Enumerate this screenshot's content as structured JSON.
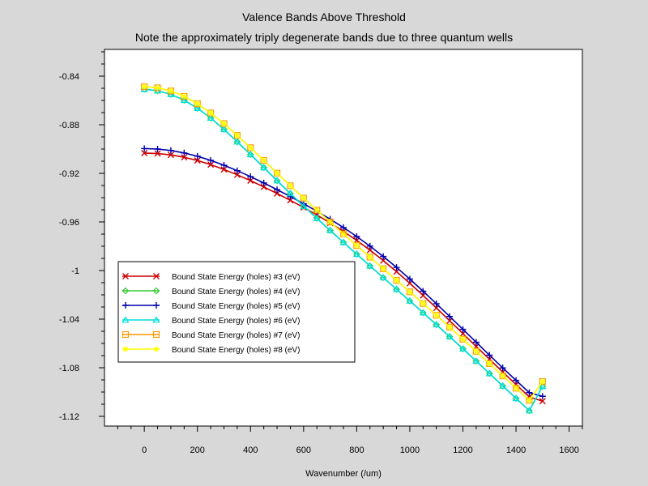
{
  "chart_data": {
    "type": "line",
    "title": "Valence Bands Above Threshold",
    "subtitle": "Note the approximately triply degenerate bands due to three quantum wells",
    "xlabel": "Wavenumber (/um)",
    "ylabel": "",
    "xlim": [
      -150,
      1650
    ],
    "ylim": [
      -1.128,
      -0.818
    ],
    "x_ticks": [
      0,
      200,
      400,
      600,
      800,
      1000,
      1200,
      1400,
      1600
    ],
    "x_tick_labels": [
      "0",
      "200",
      "400",
      "600",
      "800",
      "1000",
      "1200",
      "1400",
      "1600"
    ],
    "y_ticks": [
      -0.84,
      -0.88,
      -0.92,
      -0.96,
      -1.0,
      -1.04,
      -1.08,
      -1.12
    ],
    "y_tick_labels": [
      "-0.84",
      "-0.88",
      "-0.92",
      "-0.96",
      "-1",
      "-1.04",
      "-1.08",
      "-1.12"
    ],
    "grid": false,
    "legend_position": "lower-left",
    "x": [
      0,
      50,
      100,
      150,
      200,
      250,
      300,
      350,
      400,
      450,
      500,
      550,
      600,
      650,
      700,
      750,
      800,
      850,
      900,
      950,
      1000,
      1050,
      1100,
      1150,
      1200,
      1250,
      1300,
      1350,
      1400,
      1450,
      1500
    ],
    "series": [
      {
        "name": "Bound State Energy (holes) #3 (eV)",
        "color": "#cc0000",
        "marker": "x",
        "values": [
          -0.9033,
          -0.9037,
          -0.9048,
          -0.9068,
          -0.9094,
          -0.9128,
          -0.9168,
          -0.9212,
          -0.926,
          -0.9312,
          -0.9366,
          -0.9422,
          -0.9481,
          -0.9543,
          -0.9608,
          -0.9678,
          -0.9752,
          -0.9832,
          -0.9918,
          -1.0009,
          -1.0105,
          -1.0205,
          -1.0308,
          -1.0413,
          -1.0519,
          -1.0625,
          -1.073,
          -1.0835,
          -1.0938,
          -1.104,
          -1.1075
        ]
      },
      {
        "name": "Bound State Energy (holes) #4 (eV)",
        "color": "#33cc33",
        "marker": "diamond",
        "values": [
          -0.8508,
          -0.852,
          -0.855,
          -0.8598,
          -0.8664,
          -0.8745,
          -0.8838,
          -0.894,
          -0.9045,
          -0.9152,
          -0.926,
          -0.9366,
          -0.947,
          -0.957,
          -0.967,
          -0.9768,
          -0.9865,
          -0.9962,
          -1.0058,
          -1.0154,
          -1.025,
          -1.0347,
          -1.0445,
          -1.0544,
          -1.0644,
          -1.0745,
          -1.0847,
          -1.095,
          -1.1052,
          -1.1153,
          -1.0953
        ]
      },
      {
        "name": "Bound State Energy (holes) #5 (eV)",
        "color": "#0000aa",
        "marker": "plus",
        "values": [
          -0.8996,
          -0.9,
          -0.9012,
          -0.9032,
          -0.9059,
          -0.9093,
          -0.9133,
          -0.9178,
          -0.9227,
          -0.9279,
          -0.9334,
          -0.9391,
          -0.945,
          -0.9512,
          -0.9577,
          -0.9646,
          -0.972,
          -0.9799,
          -0.9884,
          -0.9974,
          -1.007,
          -1.017,
          -1.0273,
          -1.0378,
          -1.0484,
          -1.059,
          -1.0696,
          -1.0801,
          -1.0904,
          -1.1005,
          -1.1035
        ]
      },
      {
        "name": "Bound State Energy (holes) #6 (eV)",
        "color": "#00dddd",
        "marker": "triangle",
        "values": [
          -0.8508,
          -0.852,
          -0.855,
          -0.8598,
          -0.8664,
          -0.8745,
          -0.8838,
          -0.894,
          -0.9045,
          -0.9152,
          -0.926,
          -0.9366,
          -0.947,
          -0.957,
          -0.967,
          -0.9768,
          -0.9865,
          -0.9962,
          -1.0058,
          -1.0154,
          -1.025,
          -1.0347,
          -1.0445,
          -1.0544,
          -1.0644,
          -1.0745,
          -1.0847,
          -1.095,
          -1.1052,
          -1.1153,
          -1.0953
        ]
      },
      {
        "name": "Bound State Energy (holes) #7 (eV)",
        "color": "#ff9900",
        "marker": "square",
        "values": [
          -0.8487,
          -0.8496,
          -0.8522,
          -0.8566,
          -0.8627,
          -0.8703,
          -0.8791,
          -0.8888,
          -0.8989,
          -0.9093,
          -0.9198,
          -0.9302,
          -0.9404,
          -0.9503,
          -0.9601,
          -0.9698,
          -0.9794,
          -0.989,
          -0.9985,
          -1.008,
          -1.0175,
          -1.0271,
          -1.0368,
          -1.0466,
          -1.0565,
          -1.0665,
          -1.0766,
          -1.0867,
          -1.0968,
          -1.1068,
          -1.0913
        ]
      },
      {
        "name": "Bound State Energy (holes) #8 (eV)",
        "color": "#ffff00",
        "marker": "star",
        "values": [
          -0.8487,
          -0.8496,
          -0.8522,
          -0.8566,
          -0.8627,
          -0.8703,
          -0.8791,
          -0.8888,
          -0.8989,
          -0.9093,
          -0.9198,
          -0.9302,
          -0.9404,
          -0.9503,
          -0.9601,
          -0.9698,
          -0.9794,
          -0.989,
          -0.9985,
          -1.008,
          -1.0175,
          -1.0271,
          -1.0368,
          -1.0466,
          -1.0565,
          -1.0665,
          -1.0766,
          -1.0867,
          -1.0968,
          -1.1068,
          -1.0913
        ]
      }
    ]
  }
}
